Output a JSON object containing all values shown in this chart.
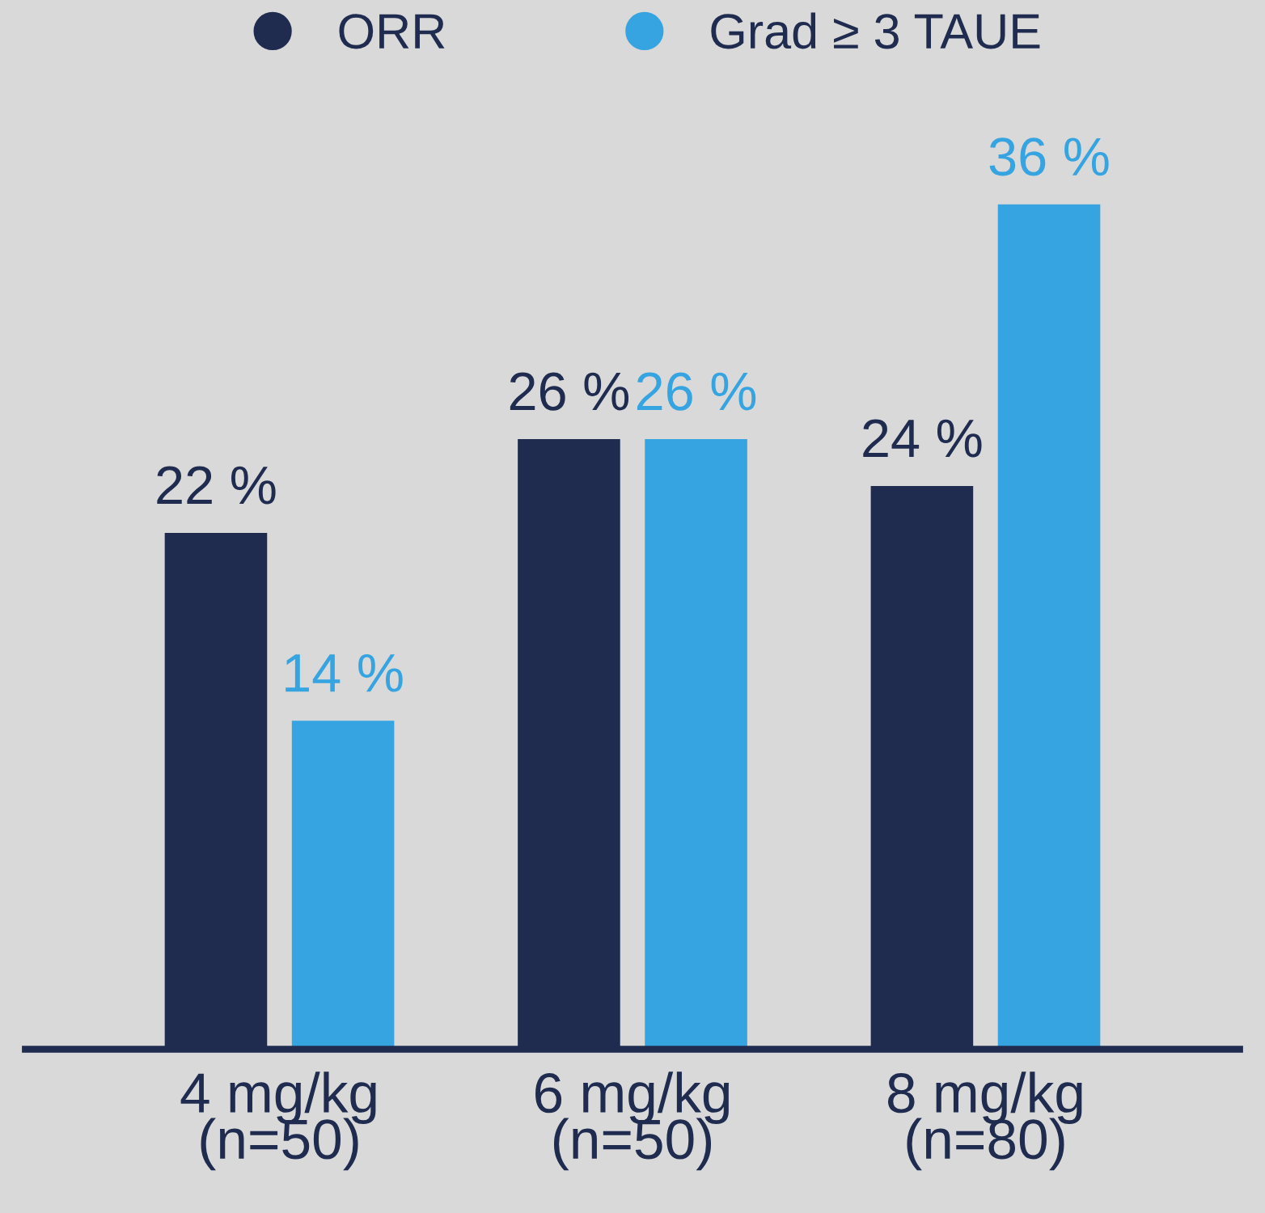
{
  "chart_data": {
    "type": "bar",
    "categories": [
      "4 mg/kg\n(n=50)",
      "6 mg/kg\n(n=50)",
      "8 mg/kg\n(n=80)"
    ],
    "series": [
      {
        "name": "ORR",
        "color": "#1f2b4f",
        "values": [
          22,
          26,
          24
        ],
        "value_labels": [
          "22 %",
          "26 %",
          "24 %"
        ]
      },
      {
        "name": "Grad ≥ 3 TAUE",
        "color": "#35a4e0",
        "values": [
          14,
          26,
          36
        ],
        "value_labels": [
          "14 %",
          "26 %",
          "36 %"
        ]
      }
    ],
    "legend": "top",
    "grid": false
  }
}
